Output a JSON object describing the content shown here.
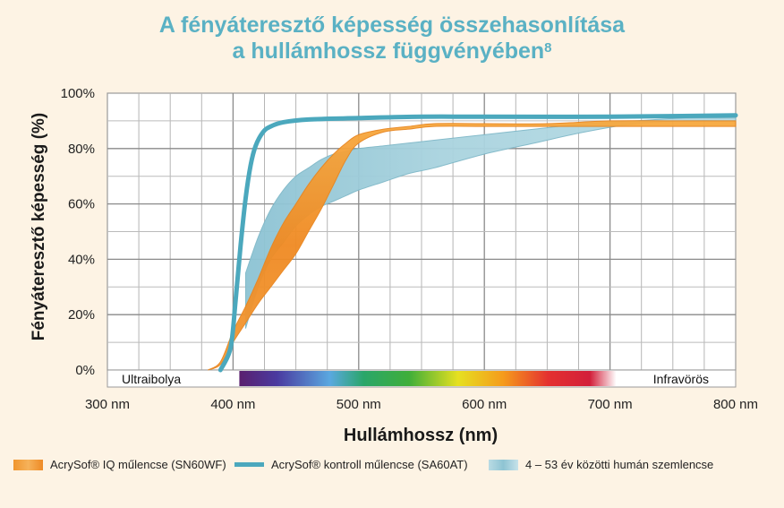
{
  "title": {
    "line1": "A fényáteresztő képesség összehasonlítása",
    "line2": "a hullámhossz függvényében",
    "superscript": "8"
  },
  "chart_data": {
    "type": "line",
    "xlabel": "Hullámhossz (nm)",
    "ylabel": "Fényáteresztő képesség (%)",
    "xlim": [
      300,
      800
    ],
    "ylim": [
      0,
      100
    ],
    "x_ticks": [
      "300 nm",
      "400 nm",
      "500 nm",
      "600 nm",
      "700 nm",
      "800 nm"
    ],
    "y_ticks": [
      "0%",
      "20%",
      "40%",
      "60%",
      "80%",
      "100%"
    ],
    "grid": true,
    "spectrum_labels": {
      "left": "Ultraibolya",
      "right": "Infravörös"
    },
    "colors": {
      "orange": "#f29432",
      "blue": "#4ba8bd",
      "band": "#9fcfdc",
      "title": "#5ab1c4"
    },
    "series": [
      {
        "name": "AcrySof® IQ műlencse (SN60WF)",
        "style": "band",
        "x": [
          380,
          390,
          400,
          410,
          420,
          430,
          440,
          450,
          460,
          470,
          480,
          490,
          500,
          520,
          540,
          560,
          600,
          650,
          700,
          750,
          800
        ],
        "lower": [
          0,
          2,
          10,
          17,
          24,
          30,
          36,
          42,
          50,
          58,
          67,
          76,
          82,
          86,
          87,
          88,
          88,
          88,
          88,
          88,
          88
        ],
        "upper": [
          0,
          3,
          14,
          23,
          33,
          44,
          53,
          60,
          67,
          73,
          78,
          82,
          85,
          87,
          88,
          89,
          89,
          89,
          90,
          90,
          90
        ]
      },
      {
        "name": "AcrySof® kontroll műlencse (SA60AT)",
        "style": "line",
        "x": [
          390,
          398,
          402,
          406,
          410,
          414,
          418,
          424,
          430,
          440,
          460,
          500,
          550,
          600,
          700,
          800
        ],
        "values": [
          0,
          8,
          25,
          45,
          62,
          74,
          81,
          86,
          88,
          89.5,
          90.5,
          91,
          91.5,
          91.5,
          91.5,
          92
        ]
      },
      {
        "name": "4 – 53 év közötti humán szemlencse",
        "style": "band",
        "x": [
          410,
          420,
          430,
          440,
          450,
          460,
          470,
          480,
          490,
          500,
          520,
          540,
          560,
          600,
          640,
          680,
          720,
          760,
          800
        ],
        "lower": [
          15,
          30,
          40,
          46,
          52,
          56,
          59,
          61,
          63,
          65,
          68,
          71,
          73,
          78,
          82,
          86,
          89,
          90,
          90
        ],
        "upper": [
          35,
          48,
          58,
          65,
          70,
          73,
          76,
          78,
          79,
          80,
          81,
          82,
          83,
          85,
          87,
          89,
          90,
          91,
          91
        ]
      }
    ]
  }
}
